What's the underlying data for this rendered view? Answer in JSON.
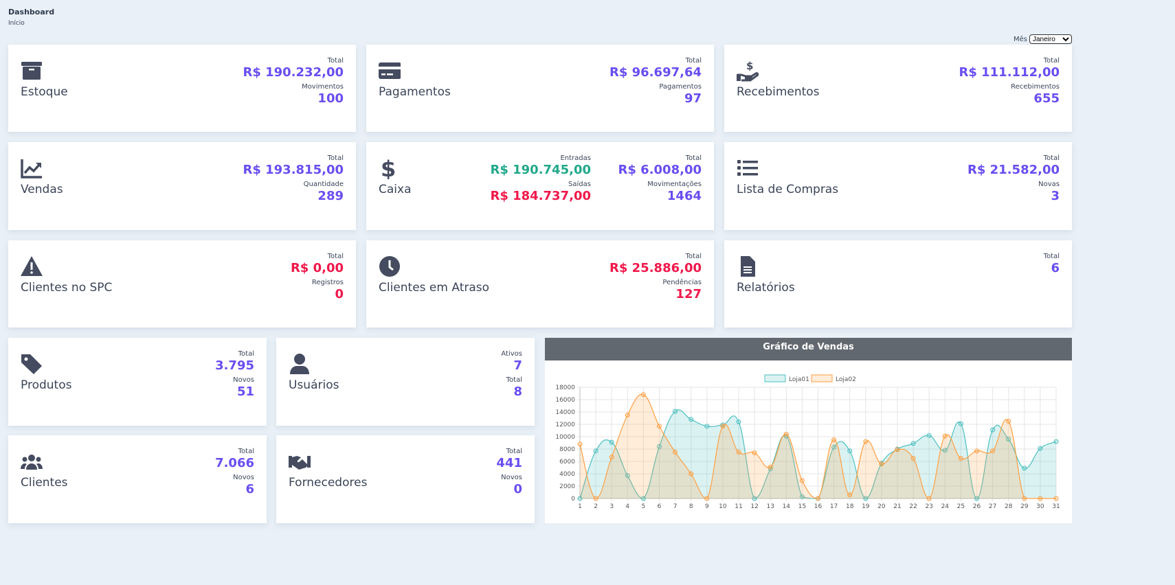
{
  "header": {
    "title": "Dashboard",
    "breadcrumb": "Início"
  },
  "filter": {
    "label": "Mês",
    "selected": "Janeiro"
  },
  "colors": {
    "purple": "#6a4df0",
    "green": "#20a98a",
    "red": "#f0184a",
    "icon": "#454c60"
  },
  "cards": [
    {
      "id": "estoque",
      "title": "Estoque",
      "icon": "archive-box",
      "stats": [
        {
          "label": "Total",
          "value": "R$ 190.232,00",
          "color": "purple"
        },
        {
          "label": "Movimentos",
          "value": "100",
          "color": "purple"
        }
      ]
    },
    {
      "id": "pagamentos",
      "title": "Pagamentos",
      "icon": "credit-card",
      "stats": [
        {
          "label": "Total",
          "value": "R$ 96.697,64",
          "color": "purple"
        },
        {
          "label": "Pagamentos",
          "value": "97",
          "color": "purple"
        }
      ]
    },
    {
      "id": "recebimentos",
      "title": "Recebimentos",
      "icon": "hand-holding-dollar",
      "stats": [
        {
          "label": "Total",
          "value": "R$ 111.112,00",
          "color": "purple"
        },
        {
          "label": "Recebimentos",
          "value": "655",
          "color": "purple"
        }
      ]
    },
    {
      "id": "vendas",
      "title": "Vendas",
      "icon": "chart-line",
      "stats": [
        {
          "label": "Total",
          "value": "R$ 193.815,00",
          "color": "purple"
        },
        {
          "label": "Quantidade",
          "value": "289",
          "color": "purple"
        }
      ]
    },
    {
      "id": "caixa",
      "title": "Caixa",
      "icon": "dollar-sign",
      "stats": [
        {
          "label": "Total",
          "value": "R$ 6.008,00",
          "color": "purple"
        },
        {
          "label": "Movimentações",
          "value": "1464",
          "color": "purple"
        }
      ],
      "stats2": [
        {
          "label": "Entradas",
          "value": "R$ 190.745,00",
          "color": "green"
        },
        {
          "label": "Saídas",
          "value": "R$ 184.737,00",
          "color": "red"
        }
      ]
    },
    {
      "id": "lista-compras",
      "title": "Lista de Compras",
      "icon": "list",
      "stats": [
        {
          "label": "Total",
          "value": "R$ 21.582,00",
          "color": "purple"
        },
        {
          "label": "Novas",
          "value": "3",
          "color": "purple"
        }
      ]
    },
    {
      "id": "clientes-spc",
      "title": "Clientes no SPC",
      "icon": "warning-triangle",
      "stats": [
        {
          "label": "Total",
          "value": "R$ 0,00",
          "color": "red"
        },
        {
          "label": "Registros",
          "value": "0",
          "color": "red"
        }
      ]
    },
    {
      "id": "clientes-atraso",
      "title": "Clientes em Atraso",
      "icon": "clock",
      "stats": [
        {
          "label": "Total",
          "value": "R$ 25.886,00",
          "color": "red"
        },
        {
          "label": "Pendências",
          "value": "127",
          "color": "red"
        }
      ]
    },
    {
      "id": "relatorios",
      "title": "Relatórios",
      "icon": "file-document",
      "stats": [
        {
          "label": "Total",
          "value": "6",
          "color": "purple"
        }
      ]
    },
    {
      "id": "produtos",
      "title": "Produtos",
      "icon": "tag",
      "stats": [
        {
          "label": "Total",
          "value": "3.795",
          "color": "purple"
        },
        {
          "label": "Novos",
          "value": "51",
          "color": "purple"
        }
      ]
    },
    {
      "id": "usuarios",
      "title": "Usuários",
      "icon": "user",
      "stats": [
        {
          "label": "Ativos",
          "value": "7",
          "color": "purple"
        },
        {
          "label": "Total",
          "value": "8",
          "color": "purple"
        }
      ]
    },
    {
      "id": "clientes",
      "title": "Clientes",
      "icon": "users",
      "stats": [
        {
          "label": "Total",
          "value": "7.066",
          "color": "purple"
        },
        {
          "label": "Novos",
          "value": "6",
          "color": "purple"
        }
      ]
    },
    {
      "id": "fornecedores",
      "title": "Fornecedores",
      "icon": "handshake",
      "stats": [
        {
          "label": "Total",
          "value": "441",
          "color": "purple"
        },
        {
          "label": "Novos",
          "value": "0",
          "color": "purple"
        }
      ]
    }
  ],
  "chart": {
    "title": "Gráfico de Vendas"
  },
  "chart_data": {
    "type": "area",
    "x": [
      1,
      2,
      3,
      4,
      5,
      6,
      7,
      8,
      9,
      10,
      11,
      12,
      13,
      14,
      15,
      16,
      17,
      18,
      19,
      20,
      21,
      22,
      23,
      24,
      25,
      26,
      27,
      28,
      29,
      30,
      31
    ],
    "ylim": [
      0,
      18000
    ],
    "yticks": [
      0,
      2000,
      4000,
      6000,
      8000,
      10000,
      12000,
      14000,
      16000,
      18000
    ],
    "grid": true,
    "legend": "top",
    "series": [
      {
        "name": "Loja01",
        "color": "#4bc0c0",
        "fill": "rgba(75,192,192,0.2)",
        "values": [
          0,
          7700,
          9100,
          3700,
          0,
          8400,
          14100,
          12800,
          11700,
          11900,
          12400,
          0,
          4800,
          10100,
          300,
          0,
          8300,
          7700,
          0,
          5700,
          8000,
          8900,
          10200,
          7800,
          12100,
          0,
          11100,
          9600,
          4900,
          8100,
          9200
        ]
      },
      {
        "name": "Loja02",
        "color": "#ff9f40",
        "fill": "rgba(255,159,64,0.2)",
        "values": [
          8800,
          0,
          6700,
          13500,
          16800,
          11700,
          7500,
          4000,
          0,
          11700,
          7500,
          7400,
          5100,
          10400,
          2900,
          0,
          9500,
          600,
          9200,
          5600,
          7900,
          6500,
          0,
          10100,
          6500,
          7700,
          7700,
          12500,
          0,
          0,
          0
        ]
      }
    ]
  }
}
